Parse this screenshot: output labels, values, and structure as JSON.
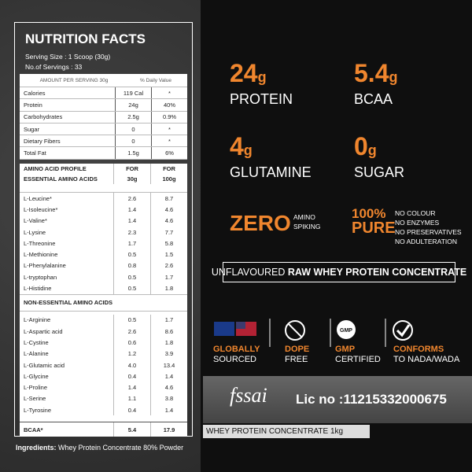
{
  "nutrition": {
    "title": "NUTRITION FACTS",
    "serving_size": "Serving Size : 1 Scoop (30g)",
    "servings": "No.of Servings : 33",
    "header": [
      "AMOUNT PER SERVING 30g",
      "% Daily Value"
    ],
    "rows": [
      [
        "Calories",
        "119 Cal",
        "*"
      ],
      [
        "Protein",
        "24g",
        "40%"
      ],
      [
        "Carbohydrates",
        "2.5g",
        "0.9%"
      ],
      [
        "Sugar",
        "0",
        "*"
      ],
      [
        "Dietary Fibers",
        "0",
        "*"
      ],
      [
        "Total Fat",
        "1.5g",
        "6%"
      ]
    ]
  },
  "amino": {
    "header": [
      [
        "AMINO ACID PROFILE",
        "FOR",
        "FOR"
      ],
      [
        "ESSENTIAL AMINO ACIDS",
        "30g",
        "100g"
      ]
    ],
    "essential": [
      [
        "L-Leucine*",
        "2.6",
        "8.7"
      ],
      [
        "L-Isoleucine*",
        "1.4",
        "4.6"
      ],
      [
        "L-Valine*",
        "1.4",
        "4.6"
      ],
      [
        "L-Lysine",
        "2.3",
        "7.7"
      ],
      [
        "L-Threonine",
        "1.7",
        "5.8"
      ],
      [
        "L-Methionine",
        "0.5",
        "1.5"
      ],
      [
        "L-Phenylalanine",
        "0.8",
        "2.6"
      ],
      [
        "L-tryptophan",
        "0.5",
        "1.7"
      ],
      [
        "L-Histidine",
        "0.5",
        "1.8"
      ]
    ],
    "non_essential_title": "NON-ESSENTIAL AMINO ACIDS",
    "non_essential": [
      [
        "L-Arginine",
        "0.5",
        "1.7"
      ],
      [
        "L-Aspartic acid",
        "2.6",
        "8.6"
      ],
      [
        "L-Cystine",
        "0.6",
        "1.8"
      ],
      [
        "L-Alanine",
        "1.2",
        "3.9"
      ],
      [
        "L-Glutamic acid",
        "4.0",
        "13.4"
      ],
      [
        "L-Glycine",
        "0.4",
        "1.4"
      ],
      [
        "L-Proline",
        "1.4",
        "4.6"
      ],
      [
        "L-Serine",
        "1.1",
        "3.8"
      ],
      [
        "L-Tyrosine",
        "0.4",
        "1.4"
      ]
    ],
    "bcaa": [
      "BCAA*",
      "5.4",
      "17.9"
    ]
  },
  "ingredients": {
    "label": "Ingredients:",
    "text": "Whey Protein Concentrate 80% Powder"
  },
  "highlights": [
    {
      "value": "24",
      "unit": "g",
      "label": "PROTEIN"
    },
    {
      "value": "5.4",
      "unit": "g",
      "label": "BCAA"
    },
    {
      "value": "4",
      "unit": "g",
      "label": "GLUTAMINE"
    },
    {
      "value": "0",
      "unit": "g",
      "label": "SUGAR"
    }
  ],
  "zero": {
    "title": "ZERO",
    "lines": [
      "AMINO",
      "SPIKING"
    ]
  },
  "pure": {
    "percent": "100%",
    "title": "PURE",
    "lines": [
      "NO COLOUR",
      "NO ENZYMES",
      "NO PRESERVATIVES",
      "NO ADULTERATION"
    ]
  },
  "banner": {
    "plain": "UNFLAVOURED",
    "bold": "RAW WHEY PROTEIN CONCENTRATE"
  },
  "badges": [
    {
      "title": "GLOBALLY",
      "sub": "SOURCED"
    },
    {
      "title": "DOPE",
      "sub": "FREE"
    },
    {
      "title": "GMP",
      "sub": "CERTIFIED"
    },
    {
      "title": "CONFORMS",
      "sub": "TO NADA/WADA"
    }
  ],
  "gmp_icon": "GMP",
  "license": {
    "logo": "fssai",
    "text": "Lic no :11215332000675"
  },
  "product": "WHEY PROTEIN CONCENTRATE 1kg"
}
